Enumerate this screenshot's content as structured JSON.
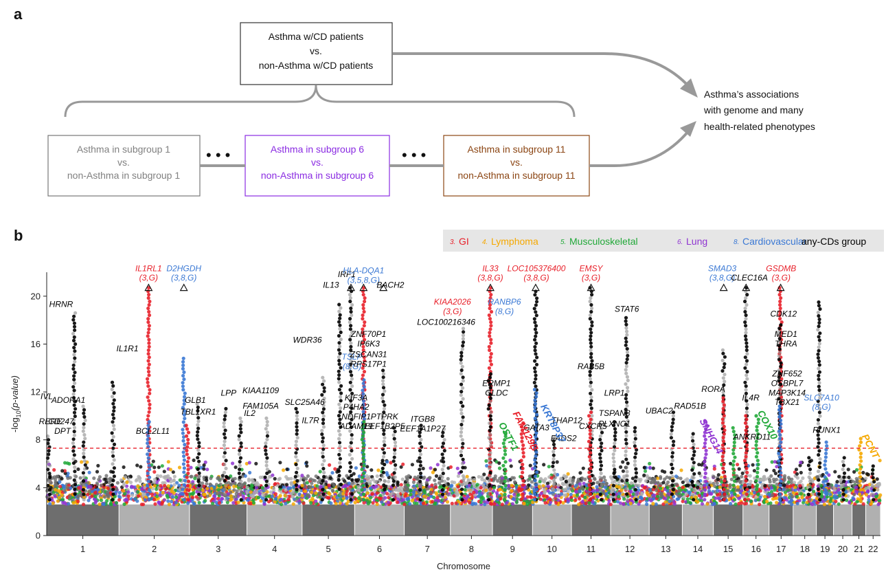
{
  "panel_a": {
    "label": "a",
    "top_box": {
      "lines": [
        "Asthma w/CD patients",
        "vs.",
        "non-Asthma w/CD patients"
      ]
    },
    "sub_boxes": [
      {
        "lines": [
          "Asthma in subgroup 1",
          "vs.",
          "non-Asthma in subgroup 1"
        ],
        "color": "#808080"
      },
      {
        "lines": [
          "Asthma in subgroup 6",
          "vs.",
          "non-Asthma in subgroup 6"
        ],
        "color": "#8a2be2"
      },
      {
        "lines": [
          "Asthma in subgroup 11",
          "vs.",
          "non-Asthma in subgroup 11"
        ],
        "color": "#8b4513"
      }
    ],
    "ellipsis": "• • •",
    "result_text": [
      "Asthma’s associations",
      "with genome and many",
      "health-related phenotypes"
    ]
  },
  "panel_b": {
    "label": "b"
  },
  "colors": {
    "GI": "#e8202a",
    "Lymphoma": "#f5a800",
    "Musculoskeletal": "#21a838",
    "Lung": "#8f34d1",
    "Cardiovascular": "#3a78d4",
    "any": "#000000",
    "threshold": "#e8202a",
    "chrom_dark": "#6e6e6e",
    "chrom_light": "#b0b0b0"
  },
  "chart_data": {
    "type": "scatter",
    "subtype": "manhattan",
    "xlabel": "Chromosome",
    "ylabel_main": "-log",
    "ylabel_sub": "10",
    "ylabel_tail": "(p-value)",
    "ylim": [
      0,
      22
    ],
    "yticks": [
      0,
      4,
      8,
      12,
      16,
      20
    ],
    "threshold": 7.3,
    "cap_value": 20.7,
    "chromosomes": [
      "1",
      "2",
      "3",
      "4",
      "5",
      "6",
      "7",
      "8",
      "9",
      "10",
      "11",
      "12",
      "13",
      "14",
      "15",
      "16",
      "17",
      "18",
      "19",
      "20",
      "21",
      "22"
    ],
    "chrom_sizes": [
      249,
      243,
      198,
      190,
      181,
      171,
      159,
      145,
      138,
      134,
      135,
      133,
      114,
      107,
      102,
      90,
      83,
      80,
      59,
      64,
      47,
      51
    ],
    "legend": [
      {
        "num": "3.",
        "name": "GI",
        "color": "#e8202a"
      },
      {
        "num": "4.",
        "name": "Lymphoma",
        "color": "#f5a800"
      },
      {
        "num": "5.",
        "name": "Musculoskeletal",
        "color": "#21a838"
      },
      {
        "num": "6.",
        "name": "Lung",
        "color": "#8f34d1"
      },
      {
        "num": "8.",
        "name": "Cardiovascular",
        "color": "#3a78d4"
      },
      {
        "num": "",
        "name": "any-CDs group",
        "color": "#000000"
      }
    ],
    "peaks": [
      {
        "chr": 1,
        "pos": 0.03,
        "max": 8.3
      },
      {
        "chr": 1,
        "pos": 0.38,
        "max": 18.6
      },
      {
        "chr": 1,
        "pos": 0.52,
        "max": 10.8
      },
      {
        "chr": 1,
        "pos": 0.92,
        "max": 12.8
      },
      {
        "chr": 2,
        "pos": 0.42,
        "max": 20.7,
        "group": "GI"
      },
      {
        "chr": 2,
        "pos": 0.42,
        "max": 9.5,
        "group": "Cardiovascular"
      },
      {
        "chr": 2,
        "pos": 0.92,
        "max": 14.8,
        "group": "Cardiovascular"
      },
      {
        "chr": 2,
        "pos": 0.97,
        "max": 9.2,
        "group": "GI"
      },
      {
        "chr": 3,
        "pos": 0.15,
        "max": 11.0
      },
      {
        "chr": 3,
        "pos": 0.62,
        "max": 10.6
      },
      {
        "chr": 3,
        "pos": 0.88,
        "max": 9.8
      },
      {
        "chr": 4,
        "pos": 0.35,
        "max": 9.8
      },
      {
        "chr": 4,
        "pos": 0.9,
        "max": 10.6
      },
      {
        "chr": 5,
        "pos": 0.72,
        "max": 19.3
      },
      {
        "chr": 5,
        "pos": 0.4,
        "max": 13.2
      },
      {
        "chr": 5,
        "pos": 0.93,
        "max": 20.7
      },
      {
        "chr": 6,
        "pos": 0.18,
        "max": 20.7,
        "group": "GI"
      },
      {
        "chr": 6,
        "pos": 0.18,
        "max": 13.0,
        "group": "Cardiovascular"
      },
      {
        "chr": 6,
        "pos": 0.17,
        "max": 9.5,
        "group": "Musculoskeletal"
      },
      {
        "chr": 6,
        "pos": 0.58,
        "max": 13.8
      },
      {
        "chr": 6,
        "pos": 0.8,
        "max": 9.0
      },
      {
        "chr": 7,
        "pos": 0.35,
        "max": 9.2
      },
      {
        "chr": 7,
        "pos": 0.85,
        "max": 8.9
      },
      {
        "chr": 8,
        "pos": 0.28,
        "max": 17.3
      },
      {
        "chr": 8,
        "pos": 0.95,
        "max": 20.7,
        "group": "GI"
      },
      {
        "chr": 8,
        "pos": 0.93,
        "max": 13.5
      },
      {
        "chr": 9,
        "pos": 0.3,
        "max": 8.6,
        "group": "Musculoskeletal"
      },
      {
        "chr": 9,
        "pos": 0.75,
        "max": 9.4,
        "group": "GI"
      },
      {
        "chr": 10,
        "pos": 0.08,
        "max": 20.4,
        "group": "any"
      },
      {
        "chr": 10,
        "pos": 0.08,
        "max": 12.2,
        "group": "Cardiovascular"
      },
      {
        "chr": 10,
        "pos": 0.55,
        "max": 8.2
      },
      {
        "chr": 11,
        "pos": 0.5,
        "max": 20.7
      },
      {
        "chr": 11,
        "pos": 0.47,
        "max": 10.3,
        "group": "GI"
      },
      {
        "chr": 11,
        "pos": 0.75,
        "max": 9.2
      },
      {
        "chr": 12,
        "pos": 0.1,
        "max": 9.5
      },
      {
        "chr": 12,
        "pos": 0.42,
        "max": 18.2
      },
      {
        "chr": 12,
        "pos": 0.65,
        "max": 9.0
      },
      {
        "chr": 13,
        "pos": 0.7,
        "max": 10.3
      },
      {
        "chr": 14,
        "pos": 0.35,
        "max": 8.5
      },
      {
        "chr": 14,
        "pos": 0.75,
        "max": 9.5,
        "group": "Lung"
      },
      {
        "chr": 15,
        "pos": 0.35,
        "max": 15.5
      },
      {
        "chr": 15,
        "pos": 0.35,
        "max": 11.5,
        "group": "GI"
      },
      {
        "chr": 15,
        "pos": 0.7,
        "max": 9.0,
        "group": "Musculoskeletal"
      },
      {
        "chr": 16,
        "pos": 0.12,
        "max": 20.7
      },
      {
        "chr": 16,
        "pos": 0.12,
        "max": 10.0,
        "group": "GI"
      },
      {
        "chr": 16,
        "pos": 0.55,
        "max": 10.0,
        "group": "Musculoskeletal"
      },
      {
        "chr": 17,
        "pos": 0.48,
        "max": 20.7,
        "group": "GI"
      },
      {
        "chr": 17,
        "pos": 0.45,
        "max": 17.6
      },
      {
        "chr": 17,
        "pos": 0.45,
        "max": 10.8,
        "group": "Cardiovascular"
      },
      {
        "chr": 18,
        "pos": 0.7,
        "max": 6.5
      },
      {
        "chr": 19,
        "pos": 0.15,
        "max": 19.5
      },
      {
        "chr": 19,
        "pos": 0.55,
        "max": 7.8,
        "group": "Cardiovascular"
      },
      {
        "chr": 20,
        "pos": 0.55,
        "max": 6.5
      },
      {
        "chr": 21,
        "pos": 0.6,
        "max": 8.1,
        "group": "Lymphoma"
      },
      {
        "chr": 22,
        "pos": 0.5,
        "max": 5.8
      }
    ],
    "gene_labels": [
      {
        "chr": 1,
        "pos": 0.05,
        "y": 9.3,
        "text": "RERE",
        "color": "#000"
      },
      {
        "chr": 1,
        "pos": 0.2,
        "y": 19.1,
        "text": "HRNR",
        "color": "#000"
      },
      {
        "chr": 1,
        "pos": 0.0,
        "y": 11.4,
        "text": "IVL",
        "color": "#000"
      },
      {
        "chr": 1,
        "pos": 0.3,
        "y": 11.1,
        "text": "ADORA1",
        "color": "#000"
      },
      {
        "chr": 1,
        "pos": 0.2,
        "y": 9.3,
        "text": "CD247",
        "color": "#000"
      },
      {
        "chr": 1,
        "pos": 0.22,
        "y": 8.5,
        "text": "DPT",
        "color": "#000"
      },
      {
        "chr": 2,
        "pos": 0.12,
        "y": 15.4,
        "text": "IL1R1",
        "color": "#000"
      },
      {
        "chr": 2,
        "pos": 0.48,
        "y": 8.5,
        "text": "BCL2L11",
        "color": "#000"
      },
      {
        "chr": 3,
        "pos": 0.1,
        "y": 11.1,
        "text": "GLB1",
        "color": "#000"
      },
      {
        "chr": 3,
        "pos": 0.15,
        "y": 10.1,
        "text": "TBL1XR1",
        "color": "#000"
      },
      {
        "chr": 3,
        "pos": 0.68,
        "y": 11.7,
        "text": "LPP",
        "color": "#000"
      },
      {
        "chr": 4,
        "pos": 0.25,
        "y": 11.9,
        "text": "KIAA1109",
        "color": "#000"
      },
      {
        "chr": 4,
        "pos": 0.05,
        "y": 10.0,
        "text": "IL2",
        "color": "#000"
      },
      {
        "chr": 4,
        "pos": 0.25,
        "y": 10.6,
        "text": "FAM105A",
        "color": "#000"
      },
      {
        "chr": 5,
        "pos": 0.1,
        "y": 16.1,
        "text": "WDR36",
        "color": "#000"
      },
      {
        "chr": 5,
        "pos": 0.05,
        "y": 10.9,
        "text": "SLC25A46",
        "color": "#000"
      },
      {
        "chr": 5,
        "pos": 0.16,
        "y": 9.4,
        "text": "IL7R",
        "color": "#000"
      },
      {
        "chr": 5,
        "pos": 0.55,
        "y": 20.7,
        "text": "IL13",
        "color": "#000"
      },
      {
        "chr": 5,
        "pos": 0.85,
        "y": 21.6,
        "text": "IRF1",
        "color": "#000"
      },
      {
        "chr": 5,
        "pos": 0.95,
        "y": 14.7,
        "text": "TSLP",
        "color": "#3a78d4"
      },
      {
        "chr": 5,
        "pos": 0.95,
        "y": 13.9,
        "text": "(8,G)",
        "color": "#3a78d4"
      },
      {
        "chr": 5,
        "pos": 1.03,
        "y": 11.3,
        "text": "KIF3A",
        "color": "#000"
      },
      {
        "chr": 5,
        "pos": 1.03,
        "y": 10.5,
        "text": "P4HA2",
        "color": "#000"
      },
      {
        "chr": 5,
        "pos": 1.03,
        "y": 9.7,
        "text": "NDFIP1",
        "color": "#000"
      },
      {
        "chr": 5,
        "pos": 1.03,
        "y": 8.9,
        "text": "ADAM19",
        "color": "#000"
      },
      {
        "chr": 6,
        "pos": 0.28,
        "y": 16.6,
        "text": "ZNF70P1",
        "color": "#000"
      },
      {
        "chr": 6,
        "pos": 0.28,
        "y": 15.8,
        "text": "IP6K3",
        "color": "#000"
      },
      {
        "chr": 6,
        "pos": 0.28,
        "y": 14.9,
        "text": "ZSCAN31",
        "color": "#000"
      },
      {
        "chr": 6,
        "pos": 0.28,
        "y": 14.1,
        "text": "RPS17P1",
        "color": "#000"
      },
      {
        "chr": 6,
        "pos": 0.18,
        "y": 21.9,
        "text": "HLA-DQA1",
        "color": "#3a78d4"
      },
      {
        "chr": 6,
        "pos": 0.18,
        "y": 21.1,
        "text": "(3,5,8,G)",
        "color": "#3a78d4"
      },
      {
        "chr": 6,
        "pos": 0.72,
        "y": 20.7,
        "text": "BACH2",
        "color": "#000"
      },
      {
        "chr": 6,
        "pos": 0.6,
        "y": 9.7,
        "text": "PTPRK",
        "color": "#000"
      },
      {
        "chr": 6,
        "pos": 0.6,
        "y": 8.9,
        "text": "EEF1B2P5",
        "color": "#000"
      },
      {
        "chr": 7,
        "pos": 0.4,
        "y": 9.5,
        "text": "ITGB8",
        "color": "#000"
      },
      {
        "chr": 7,
        "pos": 0.4,
        "y": 8.7,
        "text": "EEF1A1P27",
        "color": "#000"
      },
      {
        "chr": 8,
        "pos": -0.1,
        "y": 17.6,
        "text": "LOC100216346",
        "color": "#000"
      },
      {
        "chr": 8,
        "pos": 0.05,
        "y": 19.3,
        "text": "KIAA2026",
        "color": "#e8202a"
      },
      {
        "chr": 8,
        "pos": 0.05,
        "y": 18.5,
        "text": "(3,G)",
        "color": "#e8202a"
      },
      {
        "chr": 8,
        "pos": 0.95,
        "y": 22.1,
        "text": "IL33",
        "color": "#e8202a"
      },
      {
        "chr": 8,
        "pos": 0.95,
        "y": 21.3,
        "text": "(3,8,G)",
        "color": "#e8202a"
      },
      {
        "chr": 9,
        "pos": 0.3,
        "y": 19.3,
        "text": "RANBP6",
        "color": "#3a78d4"
      },
      {
        "chr": 9,
        "pos": 0.3,
        "y": 18.5,
        "text": "(8,G)",
        "color": "#3a78d4"
      },
      {
        "chr": 9,
        "pos": 0.1,
        "y": 12.5,
        "text": "ERMP1",
        "color": "#000"
      },
      {
        "chr": 9,
        "pos": 0.1,
        "y": 11.7,
        "text": "GLDC",
        "color": "#000"
      },
      {
        "chr": 10,
        "pos": 0.1,
        "y": 22.1,
        "text": "LOC105376400",
        "color": "#e8202a"
      },
      {
        "chr": 10,
        "pos": 0.1,
        "y": 21.3,
        "text": "(3,8,G)",
        "color": "#e8202a"
      },
      {
        "chr": 10,
        "pos": 0.1,
        "y": 8.8,
        "text": "GATA3",
        "color": "#000"
      },
      {
        "chr": 10,
        "pos": 0.88,
        "y": 9.4,
        "text": "THAP12",
        "color": "#000"
      },
      {
        "chr": 10,
        "pos": 0.8,
        "y": 7.9,
        "text": "FADS2",
        "color": "#000"
      },
      {
        "chr": 11,
        "pos": 0.5,
        "y": 22.1,
        "text": "EMSY",
        "color": "#e8202a"
      },
      {
        "chr": 11,
        "pos": 0.5,
        "y": 21.3,
        "text": "(3,G)",
        "color": "#e8202a"
      },
      {
        "chr": 11,
        "pos": 0.5,
        "y": 13.9,
        "text": "RAB5B",
        "color": "#000"
      },
      {
        "chr": 11,
        "pos": 0.55,
        "y": 8.9,
        "text": "CXCR5",
        "color": "#000"
      },
      {
        "chr": 12,
        "pos": 0.42,
        "y": 18.7,
        "text": "STAT6",
        "color": "#000"
      },
      {
        "chr": 12,
        "pos": 0.1,
        "y": 11.7,
        "text": "LRP1",
        "color": "#000"
      },
      {
        "chr": 12,
        "pos": 0.1,
        "y": 10.0,
        "text": "TSPAN8",
        "color": "#000"
      },
      {
        "chr": 12,
        "pos": 0.1,
        "y": 9.1,
        "text": "PLXNC1",
        "color": "#000"
      },
      {
        "chr": 13,
        "pos": 0.3,
        "y": 10.2,
        "text": "UBAC2",
        "color": "#000"
      },
      {
        "chr": 14,
        "pos": 0.25,
        "y": 10.6,
        "text": "RAD51B",
        "color": "#000"
      },
      {
        "chr": 15,
        "pos": 0.0,
        "y": 12.0,
        "text": "RORA",
        "color": "#000"
      },
      {
        "chr": 15,
        "pos": 0.3,
        "y": 22.1,
        "text": "SMAD3",
        "color": "#3a78d4"
      },
      {
        "chr": 15,
        "pos": 0.3,
        "y": 21.3,
        "text": "(3,8,G)",
        "color": "#3a78d4"
      },
      {
        "chr": 16,
        "pos": 0.25,
        "y": 21.3,
        "text": "CLEC16A",
        "color": "#000"
      },
      {
        "chr": 16,
        "pos": 0.3,
        "y": 11.3,
        "text": "IL4R",
        "color": "#000"
      },
      {
        "chr": 16,
        "pos": 0.35,
        "y": 8.0,
        "text": "ANKRD11",
        "color": "#000"
      },
      {
        "chr": 17,
        "pos": 0.5,
        "y": 22.1,
        "text": "GSDMB",
        "color": "#e8202a"
      },
      {
        "chr": 17,
        "pos": 0.5,
        "y": 21.3,
        "text": "(3,G)",
        "color": "#e8202a"
      },
      {
        "chr": 17,
        "pos": 0.6,
        "y": 18.3,
        "text": "CDK12",
        "color": "#000"
      },
      {
        "chr": 17,
        "pos": 0.7,
        "y": 16.6,
        "text": "MED1",
        "color": "#000"
      },
      {
        "chr": 17,
        "pos": 0.7,
        "y": 15.8,
        "text": "THRA",
        "color": "#000"
      },
      {
        "chr": 17,
        "pos": 0.75,
        "y": 13.3,
        "text": "ZNF652",
        "color": "#000"
      },
      {
        "chr": 17,
        "pos": 0.75,
        "y": 12.5,
        "text": "OSBPL7",
        "color": "#000"
      },
      {
        "chr": 17,
        "pos": 0.75,
        "y": 11.7,
        "text": "MAP3K14",
        "color": "#000"
      },
      {
        "chr": 17,
        "pos": 0.75,
        "y": 10.9,
        "text": "TBX21",
        "color": "#000"
      },
      {
        "chr": 19,
        "pos": 0.3,
        "y": 11.3,
        "text": "SLC7A10",
        "color": "#3a78d4"
      },
      {
        "chr": 19,
        "pos": 0.3,
        "y": 10.5,
        "text": "(8,G)",
        "color": "#3a78d4"
      },
      {
        "chr": 19,
        "pos": 0.6,
        "y": 8.6,
        "text": "RUNX1",
        "color": "#000"
      },
      {
        "chr": 2,
        "pos": 0.42,
        "y": 22.1,
        "text": "IL1RL1",
        "color": "#e8202a"
      },
      {
        "chr": 2,
        "pos": 0.42,
        "y": 21.3,
        "text": "(3,G)",
        "color": "#e8202a"
      },
      {
        "chr": 2,
        "pos": 0.92,
        "y": 22.1,
        "text": "D2HGDH",
        "color": "#3a78d4"
      },
      {
        "chr": 2,
        "pos": 0.92,
        "y": 21.3,
        "text": "(3,8,G)",
        "color": "#3a78d4"
      }
    ],
    "rotated_labels": [
      {
        "chr": 9,
        "pos": 0.15,
        "y": 9.3,
        "text": "OSTF1",
        "color": "#21a838",
        "angle": -62
      },
      {
        "chr": 9,
        "pos": 0.5,
        "y": 10.2,
        "text": "FAM129B",
        "color": "#e8202a",
        "angle": -62
      },
      {
        "chr": 10,
        "pos": 0.2,
        "y": 10.8,
        "text": "KRT8P37",
        "color": "#3a78d4",
        "angle": -62
      },
      {
        "chr": 14,
        "pos": 0.55,
        "y": 9.6,
        "text": "SNHG14",
        "color": "#8f34d1",
        "angle": -62
      },
      {
        "chr": 16,
        "pos": 0.55,
        "y": 10.3,
        "text": "COX10",
        "color": "#21a838",
        "angle": -62
      },
      {
        "chr": 21,
        "pos": 0.7,
        "y": 8.3,
        "text": "PCNT",
        "color": "#f5a800",
        "angle": -62
      }
    ],
    "capped_markers": [
      {
        "chr": 2,
        "pos": 0.42
      },
      {
        "chr": 2,
        "pos": 0.92
      },
      {
        "chr": 5,
        "pos": 0.93
      },
      {
        "chr": 6,
        "pos": 0.18
      },
      {
        "chr": 6,
        "pos": 0.58
      },
      {
        "chr": 8,
        "pos": 0.95
      },
      {
        "chr": 10,
        "pos": 0.08
      },
      {
        "chr": 11,
        "pos": 0.5
      },
      {
        "chr": 15,
        "pos": 0.35
      },
      {
        "chr": 16,
        "pos": 0.12
      },
      {
        "chr": 17,
        "pos": 0.48
      }
    ]
  }
}
